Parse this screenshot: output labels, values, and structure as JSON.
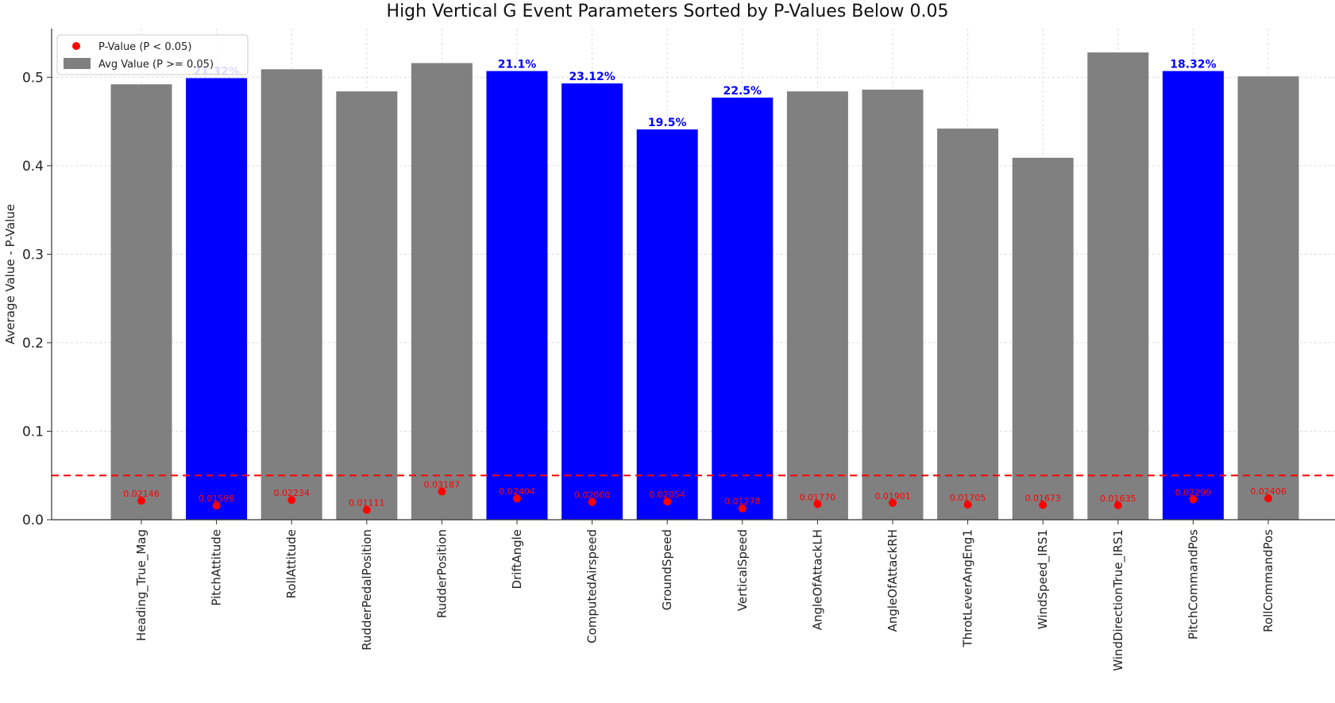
{
  "chart_data": {
    "type": "bar",
    "title": "High Vertical G Event Parameters Sorted by P-Values Below 0.05",
    "xlabel": "",
    "ylabel": "Average Value - P-Value",
    "ylim": [
      0,
      0.555
    ],
    "yticks": [
      "0.0",
      "0.1",
      "0.2",
      "0.3",
      "0.4",
      "0.5"
    ],
    "grid": true,
    "threshold": 0.05,
    "legend": {
      "placement": "top-left",
      "entries": [
        {
          "label": "P-Value (P < 0.05)",
          "kind": "marker",
          "color": "#ff0000"
        },
        {
          "label": "Avg Value (P >= 0.05)",
          "kind": "patch",
          "color": "#808080"
        }
      ]
    },
    "colors": {
      "significant": "#0000ff",
      "nonsignificant": "#808080",
      "pvalue": "#ff0000",
      "threshold": "#ff0000"
    },
    "categories": [
      "Heading_True_Mag",
      "PitchAttitude",
      "RollAttitude",
      "RudderPedalPosition",
      "RudderPosition",
      "DriftAngle",
      "ComputedAirspeed",
      "GroundSpeed",
      "VerticalSpeed",
      "AngleOfAttackLH",
      "AngleOfAttackRH",
      "ThrotLeverAngEng1",
      "WindSpeed_IRS1",
      "WindDirectionTrue_IRS1",
      "PitchCommandPos",
      "RollCommandPos"
    ],
    "series": [
      {
        "name": "Avg Value (P >= 0.05)",
        "values": [
          0.492,
          0.499,
          0.509,
          0.484,
          0.516,
          0.507,
          0.493,
          0.441,
          0.477,
          0.484,
          0.486,
          0.442,
          0.409,
          0.528,
          0.507,
          0.501
        ]
      },
      {
        "name": "P-Value (P < 0.05)",
        "values": [
          0.02146,
          0.01598,
          0.02234,
          0.01111,
          0.03187,
          0.02404,
          0.02,
          0.02054,
          0.01278,
          0.0177,
          0.01901,
          0.01705,
          0.01673,
          0.01635,
          0.02299,
          0.02406
        ]
      }
    ],
    "pvalue_labels": [
      "0.02146",
      "0.01598",
      "0.02234",
      "0.01111",
      "0.03187",
      "0.02404",
      "0.02000",
      "0.02054",
      "0.01278",
      "0.01770",
      "0.01901",
      "0.01705",
      "0.01673",
      "0.01635",
      "0.02299",
      "0.02406"
    ],
    "significant": [
      false,
      true,
      false,
      false,
      false,
      true,
      true,
      true,
      true,
      false,
      false,
      false,
      false,
      false,
      true,
      false
    ],
    "percent_labels": [
      "",
      "21.32%",
      "",
      "",
      "",
      "21.1%",
      "23.12%",
      "19.5%",
      "22.5%",
      "",
      "",
      "",
      "",
      "",
      "18.32%",
      ""
    ]
  }
}
